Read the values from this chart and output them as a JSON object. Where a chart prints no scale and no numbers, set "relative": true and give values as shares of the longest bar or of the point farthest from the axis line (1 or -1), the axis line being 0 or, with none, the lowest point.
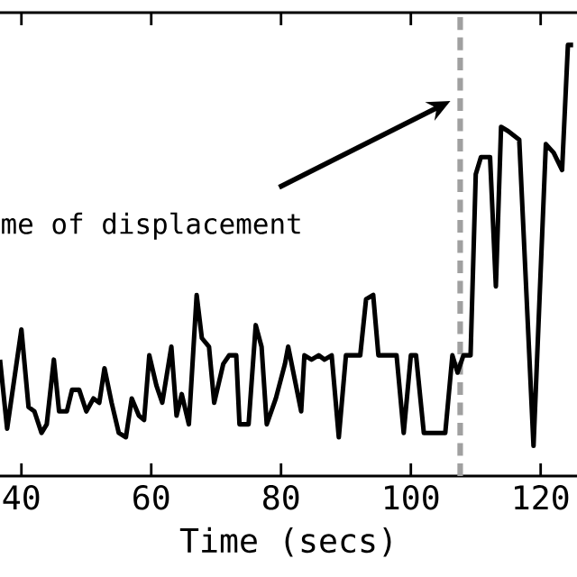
{
  "chart_data": {
    "type": "line",
    "xlabel": "Time (secs)",
    "relative": true,
    "xlim": [
      36.7,
      125.6
    ],
    "xticks": [
      40,
      60,
      80,
      100,
      120
    ],
    "x": [
      36.7,
      37.8,
      40.0,
      41.1,
      42.0,
      43.1,
      43.9,
      45.0,
      45.8,
      47.0,
      47.8,
      48.9,
      50.0,
      51.1,
      52.0,
      52.8,
      53.9,
      55.0,
      56.1,
      57.0,
      58.1,
      58.9,
      59.7,
      60.8,
      61.7,
      63.1,
      63.9,
      64.7,
      65.8,
      67.0,
      67.8,
      68.9,
      69.7,
      71.1,
      72.0,
      73.1,
      73.6,
      75.0,
      76.1,
      77.0,
      77.8,
      79.2,
      80.6,
      81.1,
      83.1,
      83.6,
      84.7,
      85.8,
      86.7,
      87.8,
      88.9,
      90.0,
      91.4,
      92.2,
      93.1,
      94.2,
      95.0,
      97.0,
      97.8,
      98.9,
      100.0,
      100.8,
      102.0,
      103.3,
      105.3,
      106.4,
      107.2,
      108.1,
      109.2,
      110.0,
      110.8,
      112.2,
      113.1,
      113.9,
      115.0,
      116.7,
      118.9,
      120.8,
      122.0,
      123.3,
      124.2,
      125.0
    ],
    "series": [
      {
        "color": "#000000",
        "line_style": "solid",
        "values": [
          0.27,
          0.11,
          0.34,
          0.16,
          0.15,
          0.1,
          0.12,
          0.27,
          0.15,
          0.15,
          0.2,
          0.2,
          0.15,
          0.18,
          0.17,
          0.25,
          0.17,
          0.1,
          0.09,
          0.18,
          0.14,
          0.13,
          0.28,
          0.21,
          0.17,
          0.3,
          0.14,
          0.19,
          0.12,
          0.42,
          0.32,
          0.3,
          0.17,
          0.26,
          0.28,
          0.28,
          0.12,
          0.12,
          0.35,
          0.3,
          0.12,
          0.18,
          0.26,
          0.3,
          0.15,
          0.28,
          0.27,
          0.28,
          0.27,
          0.28,
          0.09,
          0.28,
          0.28,
          0.28,
          0.41,
          0.42,
          0.28,
          0.28,
          0.28,
          0.1,
          0.28,
          0.28,
          0.1,
          0.1,
          0.1,
          0.28,
          0.24,
          0.28,
          0.28,
          0.7,
          0.74,
          0.74,
          0.44,
          0.81,
          0.8,
          0.78,
          0.07,
          0.77,
          0.75,
          0.71,
          1.0,
          1.0
        ]
      }
    ],
    "annotations": [
      "me of displacement"
    ],
    "ref_lines": [
      {
        "axis": "x",
        "value": 107.6,
        "color": "#a0a0a0",
        "line_style": "dashed"
      }
    ]
  }
}
